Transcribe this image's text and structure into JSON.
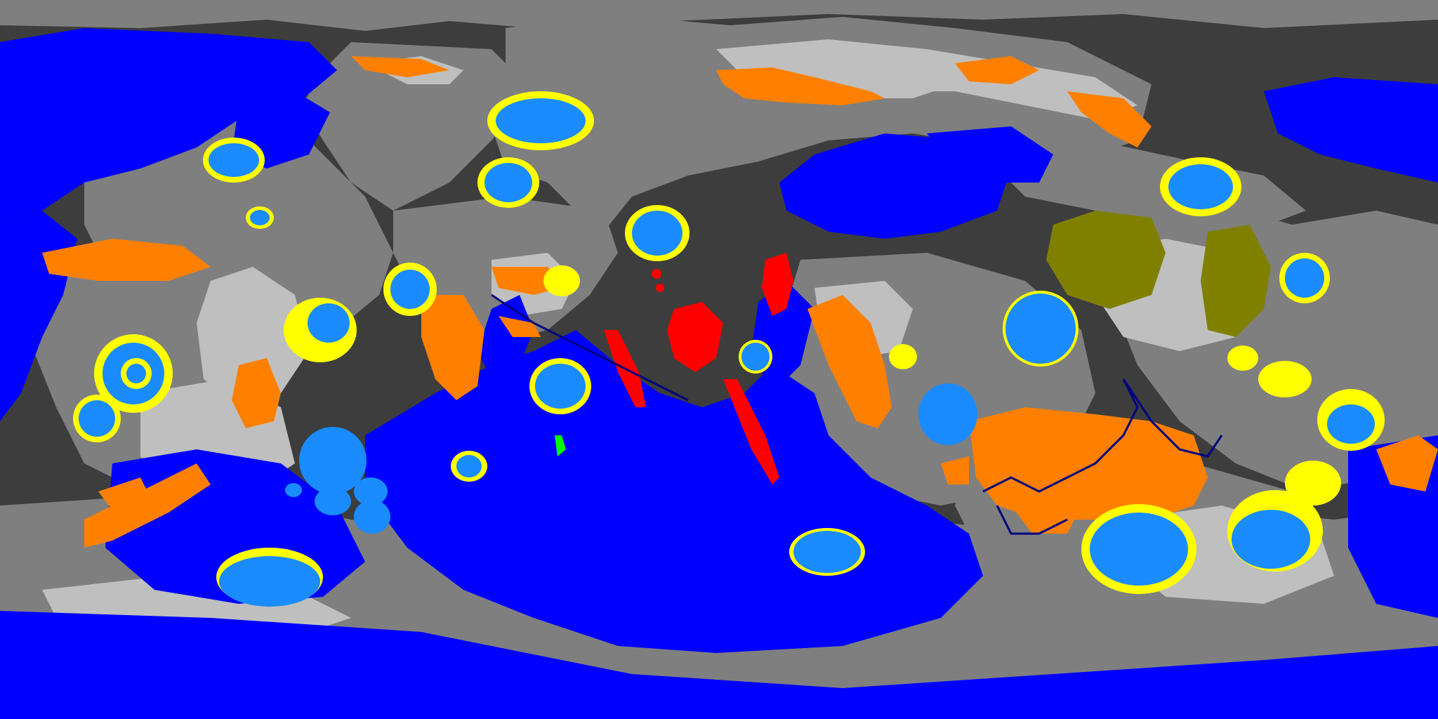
{
  "map": {
    "projection": "equirectangular",
    "colors": {
      "background": "#3d3d3d",
      "lowland_gray": "#7f7f7f",
      "highland_gray": "#bfbfbf",
      "ocean_blue": "#0000ff",
      "lake_blue": "#1a8cff",
      "crater_rim_yellow": "#ffff00",
      "desert_orange": "#ff8000",
      "volcanic_red": "#ff0000",
      "forest_olive": "#808000",
      "river_dark_blue": "#000080",
      "green_patch": "#00ff00"
    },
    "legend": []
  }
}
